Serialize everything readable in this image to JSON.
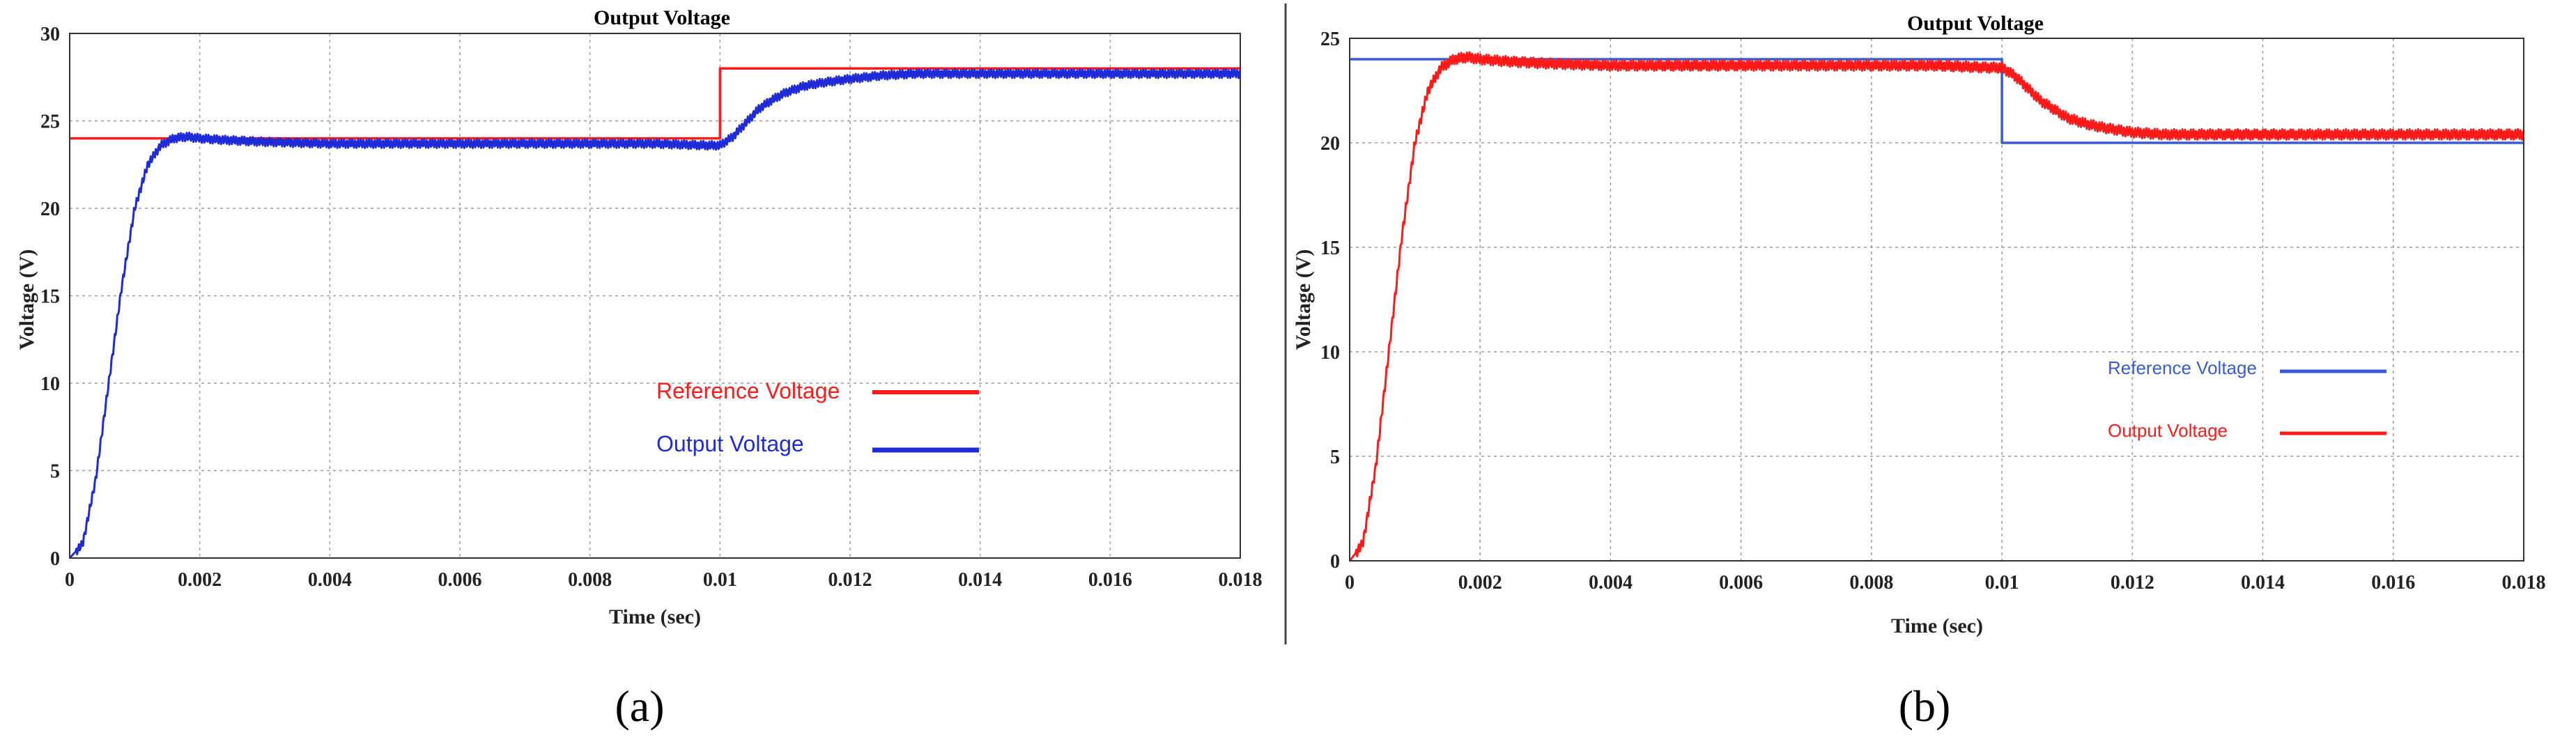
{
  "chart_data": [
    {
      "type": "line",
      "panel_label": "(a)",
      "title": "Output Voltage",
      "xlabel": "Time (sec)",
      "ylabel": "Voltage (V)",
      "xlim": [
        0,
        0.018
      ],
      "ylim": [
        0,
        30
      ],
      "xticks": [
        "0",
        "0.002",
        "0.004",
        "0.006",
        "0.008",
        "0.01",
        "0.012",
        "0.014",
        "0.016",
        "0.018"
      ],
      "yticks": [
        "0",
        "5",
        "10",
        "15",
        "20",
        "25",
        "30"
      ],
      "grid": true,
      "legend_position": "right",
      "series": [
        {
          "name": "Reference Voltage",
          "color": "#ff1a1a",
          "x": [
            0,
            0.01,
            0.01,
            0.018
          ],
          "y": [
            24,
            24,
            28,
            28
          ]
        },
        {
          "name": "Output Voltage",
          "color": "#1f2bd6",
          "x": [
            0,
            0.0002,
            0.0004,
            0.0006,
            0.0008,
            0.001,
            0.0012,
            0.0014,
            0.0016,
            0.0018,
            0.002,
            0.0024,
            0.003,
            0.004,
            0.005,
            0.006,
            0.007,
            0.008,
            0.009,
            0.0098,
            0.01,
            0.0102,
            0.0104,
            0.0106,
            0.0108,
            0.011,
            0.0113,
            0.0116,
            0.012,
            0.0125,
            0.013,
            0.0135,
            0.014,
            0.015,
            0.016,
            0.017,
            0.018
          ],
          "y": [
            0,
            0.8,
            4.5,
            10,
            15.5,
            20,
            22.5,
            23.6,
            24.0,
            24.1,
            24.0,
            23.9,
            23.8,
            23.7,
            23.7,
            23.7,
            23.7,
            23.7,
            23.7,
            23.6,
            23.6,
            24.1,
            24.9,
            25.7,
            26.2,
            26.6,
            27.0,
            27.2,
            27.4,
            27.6,
            27.7,
            27.7,
            27.7,
            27.7,
            27.7,
            27.7,
            27.7
          ],
          "ripple": 0.25
        }
      ]
    },
    {
      "type": "line",
      "panel_label": "(b)",
      "title": "Output Voltage",
      "xlabel": "Time (sec)",
      "ylabel": "Voltage (V)",
      "xlim": [
        0,
        0.018
      ],
      "ylim": [
        0,
        25
      ],
      "xticks": [
        "0",
        "0.002",
        "0.004",
        "0.006",
        "0.008",
        "0.01",
        "0.012",
        "0.014",
        "0.016",
        "0.018"
      ],
      "yticks": [
        "0",
        "5",
        "10",
        "15",
        "20",
        "25"
      ],
      "grid": true,
      "legend_position": "right",
      "series": [
        {
          "name": "Reference Voltage",
          "color": "#3a5bd9",
          "x": [
            0,
            0.01,
            0.01,
            0.018
          ],
          "y": [
            24,
            24,
            20,
            20
          ]
        },
        {
          "name": "Output Voltage",
          "color": "#ff1a1a",
          "x": [
            0,
            0.0002,
            0.0004,
            0.0006,
            0.0008,
            0.001,
            0.0012,
            0.0014,
            0.0016,
            0.0018,
            0.002,
            0.0024,
            0.003,
            0.004,
            0.005,
            0.006,
            0.007,
            0.008,
            0.009,
            0.0098,
            0.01,
            0.0102,
            0.0104,
            0.0106,
            0.0108,
            0.011,
            0.0113,
            0.0116,
            0.012,
            0.0125,
            0.013,
            0.0135,
            0.014,
            0.015,
            0.016,
            0.017,
            0.018
          ],
          "y": [
            0,
            0.8,
            4.5,
            10,
            15.5,
            20,
            22.5,
            23.6,
            24.0,
            24.1,
            24.0,
            23.9,
            23.8,
            23.7,
            23.7,
            23.7,
            23.7,
            23.7,
            23.7,
            23.6,
            23.6,
            23.2,
            22.6,
            22.0,
            21.6,
            21.2,
            20.9,
            20.7,
            20.5,
            20.4,
            20.4,
            20.4,
            20.4,
            20.4,
            20.4,
            20.4,
            20.4
          ],
          "ripple": 0.25
        }
      ]
    }
  ]
}
